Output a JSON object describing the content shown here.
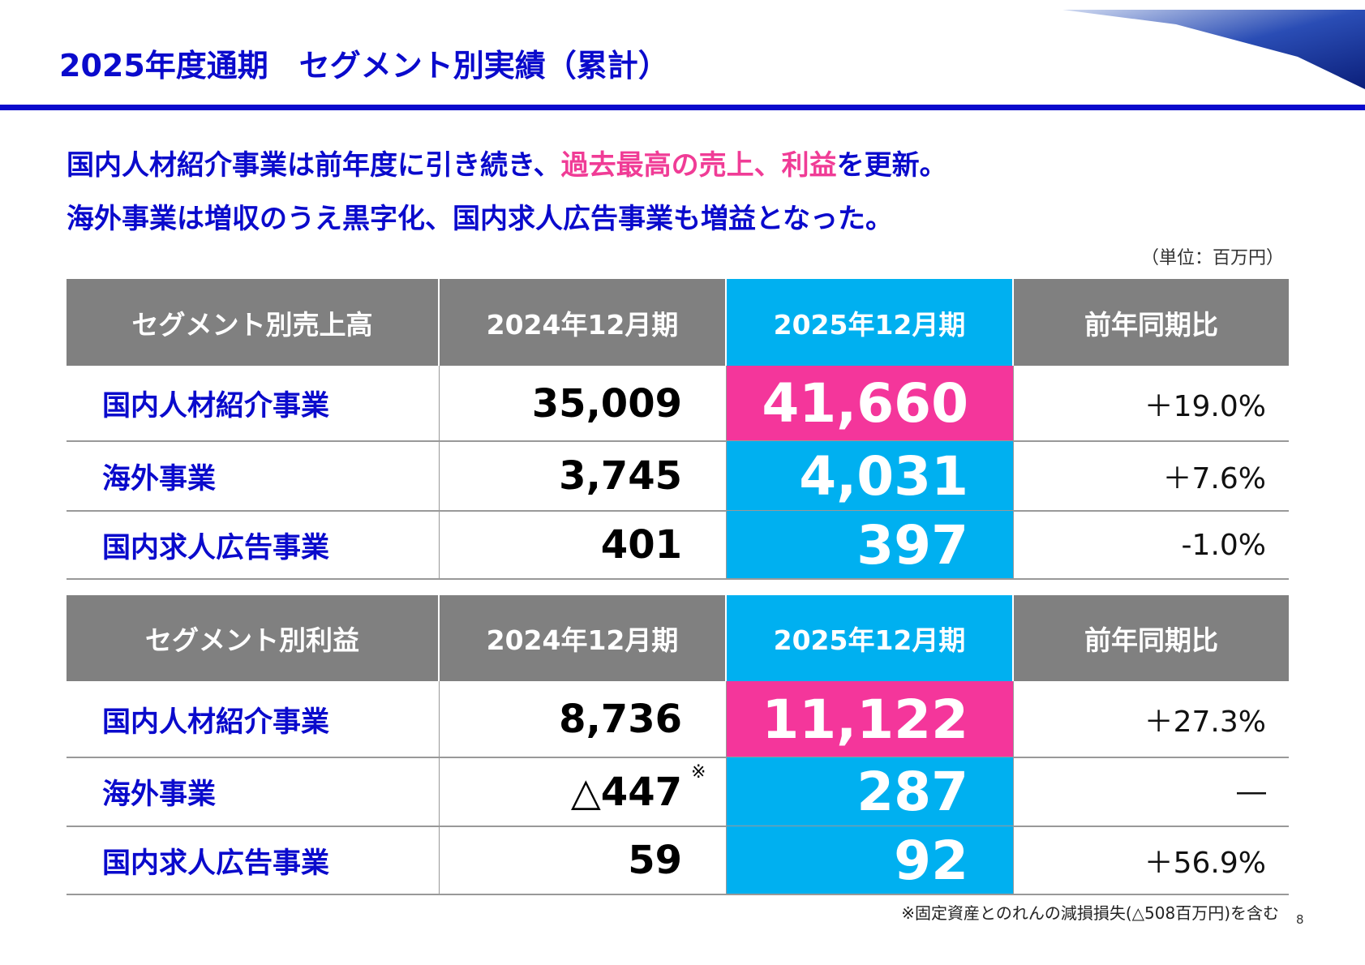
{
  "header": {
    "title": "2025年度通期　セグメント別実績（累計）"
  },
  "lead": [
    [
      "国内人材紹介事業は前年度に引き続き、",
      "過去最高の売上、利益",
      "を更新。"
    ],
    [
      "海外事業は増収のうえ黒字化、国内求人広告事業も増益となった。"
    ]
  ],
  "unit": "（単位：百万円）",
  "tables": [
    {
      "header": [
        "セグメント別売上高",
        "2024年12月期",
        "2025年12月期",
        "前年同期比"
      ],
      "rows": [
        [
          "国内人材紹介事業",
          "35,009",
          "41,660",
          "＋19.0%"
        ],
        [
          "海外事業",
          "3,745",
          "4,031",
          "＋7.6%"
        ],
        [
          "国内求人広告事業",
          "401",
          "397",
          "-1.0%"
        ]
      ]
    },
    {
      "header": [
        "セグメント別利益",
        "2024年12月期",
        "2025年12月期",
        "前年同期比"
      ],
      "rows": [
        [
          "国内人材紹介事業",
          "8,736",
          "11,122",
          "＋27.3%"
        ],
        [
          "海外事業",
          "△447",
          "287",
          "―"
        ],
        [
          "国内求人広告事業",
          "59",
          "92",
          "＋56.9%"
        ]
      ]
    }
  ],
  "note_mark": "※",
  "footnote": "※固定資産とのれんの減損損失(△508百万円)を含む",
  "page_number": "8"
}
